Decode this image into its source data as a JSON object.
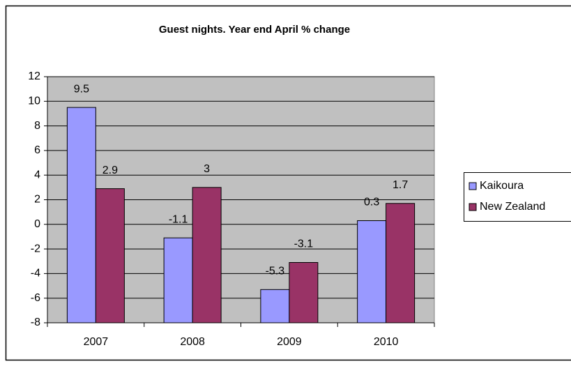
{
  "chart_data": {
    "type": "bar",
    "title": "Guest nights. Year end April % change",
    "categories": [
      "2007",
      "2008",
      "2009",
      "2010"
    ],
    "series": [
      {
        "name": "Kaikoura",
        "color": "#9999ff",
        "values": [
          9.5,
          -1.1,
          -5.3,
          0.3
        ]
      },
      {
        "name": "New Zealand",
        "color": "#993366",
        "values": [
          2.9,
          3,
          -3.1,
          1.7
        ]
      }
    ],
    "ylim": [
      -8,
      12
    ],
    "yticks": [
      -8,
      -6,
      -4,
      -2,
      0,
      2,
      4,
      6,
      8,
      10,
      12
    ],
    "grid": true,
    "legend": "right"
  }
}
